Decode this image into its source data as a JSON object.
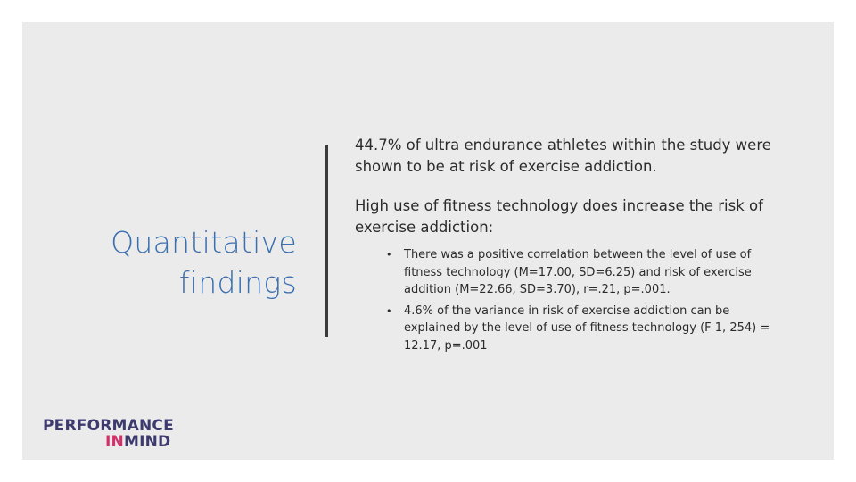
{
  "slide": {
    "title_line1": "Quantitative",
    "title_line2": "findings",
    "paragraph1": "44.7% of ultra endurance athletes within the study were shown to be at risk of exercise addiction.",
    "paragraph2": "High use of fitness technology does increase the risk of exercise addiction:",
    "bullets": [
      "There was a positive correlation between the level of use of fitness technology (M=17.00, SD=6.25) and risk of exercise addition (M=22.66, SD=3.70), r=.21, p=.001.",
      "4.6% of the variance in risk of exercise addiction can be explained by the level of use of fitness technology (F 1, 254) = 12.17, p=.001"
    ],
    "bullet_marker": "•"
  },
  "logo": {
    "line1": "PERFORMANCE",
    "line2_highlight": "IN",
    "line2_rest": "MIND"
  },
  "colors": {
    "title": "#3a6fb0",
    "background": "#ebebeb",
    "logo_primary": "#3d3a6e",
    "logo_accent": "#d62e6a"
  }
}
